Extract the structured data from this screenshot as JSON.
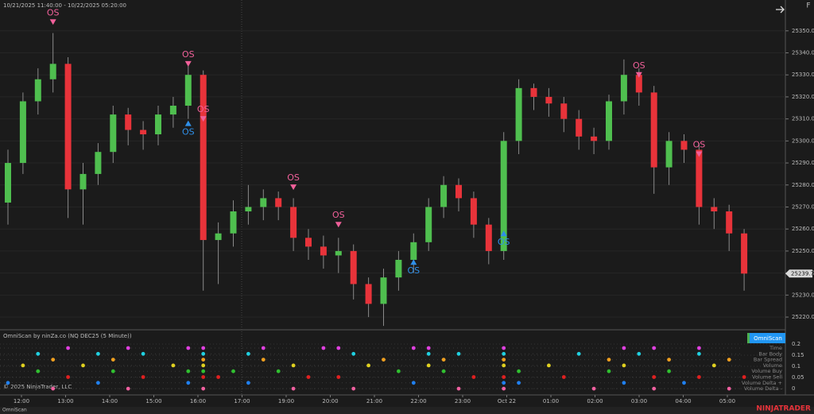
{
  "header": {
    "range": "10/21/2025 11:40:00 - 10/22/2025 05:20:00",
    "corner": "F"
  },
  "chart_data": {
    "type": "candlestick",
    "open": [
      25272,
      25290,
      25318,
      25328,
      25335,
      25278,
      25285,
      25295,
      25312,
      25305,
      25303,
      25312,
      25316,
      25330,
      25255,
      25258,
      25268,
      25270,
      25274,
      25270,
      25256,
      25252,
      25248,
      25250,
      25235,
      25226,
      25238,
      25246,
      25254,
      25270,
      25280,
      25274,
      25262,
      25250,
      25300,
      25324,
      25320,
      25317,
      25310,
      25302,
      25300,
      25318,
      25330,
      25322,
      25288,
      25300,
      25296,
      25270,
      25268,
      25258
    ],
    "high": [
      25296,
      25322,
      25333,
      25349,
      25338,
      25290,
      25299,
      25316,
      25315,
      25309,
      25316,
      25320,
      25334,
      25332,
      25263,
      25273,
      25280,
      25278,
      25277,
      25274,
      25260,
      25257,
      25256,
      25253,
      25238,
      25242,
      25250,
      25258,
      25274,
      25284,
      25283,
      25277,
      25265,
      25304,
      25328,
      25326,
      25324,
      25320,
      25314,
      25306,
      25321,
      25337,
      25333,
      25325,
      25304,
      25303,
      25299,
      25274,
      25271,
      25260
    ],
    "low": [
      25262,
      25285,
      25312,
      25322,
      25265,
      25262,
      25280,
      25290,
      25298,
      25296,
      25298,
      25306,
      25310,
      25232,
      25235,
      25252,
      25262,
      25264,
      25264,
      25250,
      25246,
      25242,
      25240,
      25228,
      25220,
      25216,
      25232,
      25240,
      25250,
      25265,
      25268,
      25256,
      25244,
      25246,
      25294,
      25314,
      25311,
      25304,
      25296,
      25294,
      25296,
      25312,
      25316,
      25276,
      25280,
      25290,
      25262,
      25260,
      25250,
      25232
    ],
    "close": [
      25290,
      25318,
      25328,
      25335,
      25278,
      25285,
      25295,
      25312,
      25305,
      25303,
      25312,
      25316,
      25330,
      25255,
      25258,
      25268,
      25270,
      25274,
      25270,
      25256,
      25252,
      25248,
      25250,
      25235,
      25226,
      25238,
      25246,
      25254,
      25270,
      25280,
      25274,
      25262,
      25250,
      25300,
      25324,
      25320,
      25317,
      25310,
      25302,
      25300,
      25318,
      25330,
      25322,
      25288,
      25300,
      25296,
      25270,
      25268,
      25258,
      25239.75
    ],
    "up_color": "#4fbf4f",
    "down_color": "#e8333a",
    "signal_label": "OS",
    "sell_signals": [
      null,
      null,
      null,
      25352,
      null,
      null,
      null,
      null,
      null,
      null,
      null,
      null,
      25333,
      25308,
      null,
      null,
      null,
      null,
      null,
      25277,
      null,
      null,
      25260,
      null,
      null,
      null,
      null,
      null,
      null,
      null,
      null,
      null,
      null,
      null,
      null,
      null,
      null,
      null,
      null,
      null,
      null,
      null,
      25328,
      null,
      null,
      null,
      25292,
      null,
      null,
      null
    ],
    "buy_signals": [
      null,
      null,
      null,
      null,
      null,
      null,
      null,
      null,
      null,
      null,
      null,
      null,
      25310,
      null,
      null,
      null,
      null,
      null,
      null,
      null,
      null,
      null,
      null,
      null,
      null,
      null,
      null,
      25247,
      null,
      null,
      null,
      null,
      null,
      25260,
      null,
      null,
      null,
      null,
      null,
      null,
      null,
      null,
      null,
      null,
      null,
      null,
      null,
      null,
      null,
      null
    ],
    "sell_color": "#f0609a",
    "buy_color": "#2f8fe8",
    "last_price": {
      "value": 25239.75,
      "label": "25239.75"
    },
    "ylim": [
      25214.6,
      25364
    ],
    "yticks": [
      {
        "value": 25220,
        "label": "25220.00"
      },
      {
        "value": 25230,
        "label": "25230.00"
      },
      {
        "value": 25240,
        "label": "25240.00"
      },
      {
        "value": 25250,
        "label": "25250.00"
      },
      {
        "value": 25260,
        "label": "25260.00"
      },
      {
        "value": 25270,
        "label": "25270.00"
      },
      {
        "value": 25280,
        "label": "25280.00"
      },
      {
        "value": 25290,
        "label": "25290.00"
      },
      {
        "value": 25300,
        "label": "25300.00"
      },
      {
        "value": 25310,
        "label": "25310.00"
      },
      {
        "value": 25320,
        "label": "25320.00"
      },
      {
        "value": 25330,
        "label": "25330.00"
      },
      {
        "value": 25340,
        "label": "25340.00"
      },
      {
        "value": 25350,
        "label": "25350.00"
      }
    ],
    "time_labels": [
      "12:00",
      "13:00",
      "14:00",
      "15:00",
      "16:00",
      "17:00",
      "19:00",
      "20:00",
      "21:00",
      "22:00",
      "23:00",
      "Oct 22",
      "01:00",
      "02:00",
      "03:00",
      "04:00",
      "05:00"
    ]
  },
  "scan": {
    "title": "OmniScan by ninZa.co (NQ DEC25 (5 Minute))",
    "button": "OmniScan",
    "yticks": [
      0.2,
      0.15,
      0.1,
      0.05,
      0
    ],
    "rows": [
      {
        "name": "Time",
        "color": "#e040e0",
        "hits": [
          4,
          8,
          12,
          13,
          17,
          21,
          22,
          27,
          28,
          33,
          41,
          43,
          46
        ]
      },
      {
        "name": "Bar Body",
        "color": "#20d0e0",
        "hits": [
          2,
          6,
          9,
          13,
          16,
          23,
          28,
          30,
          33,
          38,
          42,
          46
        ]
      },
      {
        "name": "Bar Spread",
        "color": "#f0a020",
        "hits": [
          3,
          7,
          13,
          17,
          25,
          29,
          33,
          40,
          44,
          48
        ]
      },
      {
        "name": "Volume",
        "color": "#e0d020",
        "hits": [
          1,
          5,
          11,
          13,
          19,
          24,
          28,
          33,
          36,
          41,
          47
        ]
      },
      {
        "name": "Volume Buy",
        "color": "#30c030",
        "hits": [
          2,
          7,
          12,
          13,
          15,
          18,
          26,
          29,
          34,
          40,
          44
        ]
      },
      {
        "name": "Volume Sell",
        "color": "#e02020",
        "hits": [
          4,
          9,
          13,
          14,
          20,
          22,
          31,
          33,
          37,
          43,
          46,
          49
        ]
      },
      {
        "name": "Volume Delta +",
        "color": "#2080f0",
        "hits": [
          0,
          6,
          12,
          16,
          27,
          33,
          34,
          41,
          45
        ]
      },
      {
        "name": "Volume Delta -",
        "color": "#f060a0",
        "hits": [
          3,
          8,
          13,
          19,
          23,
          30,
          33,
          39,
          43,
          48
        ]
      }
    ]
  },
  "footer": {
    "copyright": "© 2025 NinjaTrader, LLC",
    "tab": "OmniScan",
    "brand": "NINJATRADER"
  }
}
